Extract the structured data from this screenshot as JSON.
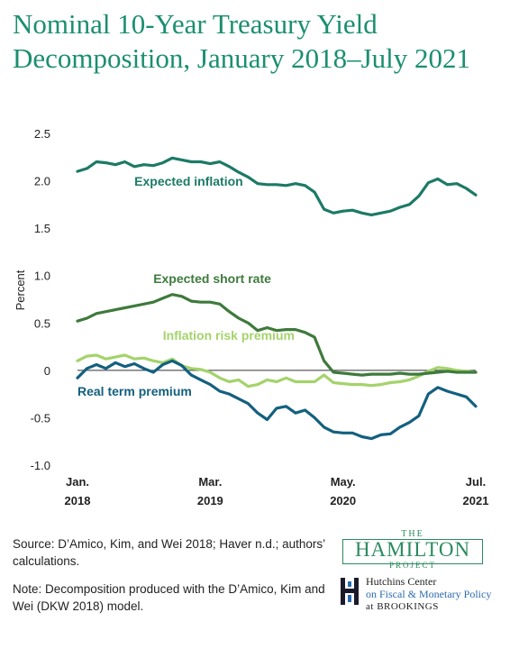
{
  "title": "Nominal 10-Year Treasury Yield Decomposition, January 2018–July 2021",
  "source": "Source: D’Amico, Kim, and Wei 2018; Haver n.d.; authors’ calculations.",
  "note": "Note: Decomposition produced with the D’Amico, Kim and Wei (DKW 2018) model.",
  "logo": {
    "the": "THE",
    "hamilton": "HAMILTON",
    "project": "PROJECT",
    "hutchins_line1": "Hutchins Center",
    "hutchins_line2": "on Fiscal & Monetary Policy",
    "hutchins_line3": "at BROOKINGS"
  },
  "colors": {
    "expected_inflation": "#1c7a66",
    "expected_short_rate": "#3e7a3c",
    "inflation_risk_premium": "#a4d36b",
    "real_term_premium": "#13607f",
    "title": "#1a8f6f"
  },
  "chart_data": {
    "type": "line",
    "ylabel": "Percent",
    "ylim": [
      -1.0,
      2.5
    ],
    "yticks": [
      "2.5",
      "2.0",
      "1.5",
      "1.0",
      "0.5",
      "0",
      "-0.5",
      "-1.0"
    ],
    "xlim": [
      "2018-01",
      "2021-07"
    ],
    "xticks": [
      {
        "x": "2018-01",
        "line1": "Jan.",
        "line2": "2018"
      },
      {
        "x": "2019-03",
        "line1": "Mar.",
        "line2": "2019"
      },
      {
        "x": "2020-05",
        "line1": "May.",
        "line2": "2020"
      },
      {
        "x": "2021-07",
        "line1": "Jul.",
        "line2": "2021"
      }
    ],
    "series": [
      {
        "name": "Expected inflation",
        "label_anchor": {
          "x": "2018-07",
          "y": 1.95
        },
        "points": [
          [
            "2018-01",
            2.1
          ],
          [
            "2018-02",
            2.13
          ],
          [
            "2018-03",
            2.2
          ],
          [
            "2018-04",
            2.19
          ],
          [
            "2018-05",
            2.17
          ],
          [
            "2018-06",
            2.2
          ],
          [
            "2018-07",
            2.15
          ],
          [
            "2018-08",
            2.17
          ],
          [
            "2018-09",
            2.16
          ],
          [
            "2018-10",
            2.19
          ],
          [
            "2018-11",
            2.24
          ],
          [
            "2018-12",
            2.22
          ],
          [
            "2019-01",
            2.2
          ],
          [
            "2019-02",
            2.2
          ],
          [
            "2019-03",
            2.18
          ],
          [
            "2019-04",
            2.2
          ],
          [
            "2019-05",
            2.15
          ],
          [
            "2019-06",
            2.09
          ],
          [
            "2019-07",
            2.04
          ],
          [
            "2019-08",
            1.97
          ],
          [
            "2019-09",
            1.96
          ],
          [
            "2019-10",
            1.96
          ],
          [
            "2019-11",
            1.95
          ],
          [
            "2019-12",
            1.97
          ],
          [
            "2020-01",
            1.95
          ],
          [
            "2020-02",
            1.88
          ],
          [
            "2020-03",
            1.7
          ],
          [
            "2020-04",
            1.66
          ],
          [
            "2020-05",
            1.68
          ],
          [
            "2020-06",
            1.69
          ],
          [
            "2020-07",
            1.66
          ],
          [
            "2020-08",
            1.64
          ],
          [
            "2020-09",
            1.66
          ],
          [
            "2020-10",
            1.68
          ],
          [
            "2020-11",
            1.72
          ],
          [
            "2020-12",
            1.75
          ],
          [
            "2021-01",
            1.84
          ],
          [
            "2021-02",
            1.98
          ],
          [
            "2021-03",
            2.02
          ],
          [
            "2021-04",
            1.96
          ],
          [
            "2021-05",
            1.97
          ],
          [
            "2021-06",
            1.92
          ],
          [
            "2021-07",
            1.85
          ]
        ]
      },
      {
        "name": "Expected short rate",
        "label_anchor": {
          "x": "2018-09",
          "y": 0.92
        },
        "points": [
          [
            "2018-01",
            0.52
          ],
          [
            "2018-02",
            0.55
          ],
          [
            "2018-03",
            0.6
          ],
          [
            "2018-04",
            0.62
          ],
          [
            "2018-05",
            0.64
          ],
          [
            "2018-06",
            0.66
          ],
          [
            "2018-07",
            0.68
          ],
          [
            "2018-08",
            0.7
          ],
          [
            "2018-09",
            0.72
          ],
          [
            "2018-10",
            0.76
          ],
          [
            "2018-11",
            0.8
          ],
          [
            "2018-12",
            0.78
          ],
          [
            "2019-01",
            0.73
          ],
          [
            "2019-02",
            0.72
          ],
          [
            "2019-03",
            0.72
          ],
          [
            "2019-04",
            0.7
          ],
          [
            "2019-05",
            0.62
          ],
          [
            "2019-06",
            0.55
          ],
          [
            "2019-07",
            0.5
          ],
          [
            "2019-08",
            0.42
          ],
          [
            "2019-09",
            0.45
          ],
          [
            "2019-10",
            0.42
          ],
          [
            "2019-11",
            0.43
          ],
          [
            "2019-12",
            0.43
          ],
          [
            "2020-01",
            0.4
          ],
          [
            "2020-02",
            0.35
          ],
          [
            "2020-03",
            0.1
          ],
          [
            "2020-04",
            -0.02
          ],
          [
            "2020-05",
            -0.03
          ],
          [
            "2020-06",
            -0.04
          ],
          [
            "2020-07",
            -0.05
          ],
          [
            "2020-08",
            -0.04
          ],
          [
            "2020-09",
            -0.04
          ],
          [
            "2020-10",
            -0.04
          ],
          [
            "2020-11",
            -0.03
          ],
          [
            "2020-12",
            -0.04
          ],
          [
            "2021-01",
            -0.04
          ],
          [
            "2021-02",
            -0.03
          ],
          [
            "2021-03",
            -0.02
          ],
          [
            "2021-04",
            -0.01
          ],
          [
            "2021-05",
            -0.02
          ],
          [
            "2021-06",
            -0.02
          ],
          [
            "2021-07",
            -0.02
          ]
        ]
      },
      {
        "name": "Inflation risk premium",
        "label_anchor": {
          "x": "2018-10",
          "y": 0.32
        },
        "points": [
          [
            "2018-01",
            0.1
          ],
          [
            "2018-02",
            0.15
          ],
          [
            "2018-03",
            0.16
          ],
          [
            "2018-04",
            0.12
          ],
          [
            "2018-05",
            0.14
          ],
          [
            "2018-06",
            0.16
          ],
          [
            "2018-07",
            0.12
          ],
          [
            "2018-08",
            0.13
          ],
          [
            "2018-09",
            0.1
          ],
          [
            "2018-10",
            0.08
          ],
          [
            "2018-11",
            0.12
          ],
          [
            "2018-12",
            0.05
          ],
          [
            "2019-01",
            0.02
          ],
          [
            "2019-02",
            0.01
          ],
          [
            "2019-03",
            -0.02
          ],
          [
            "2019-04",
            -0.08
          ],
          [
            "2019-05",
            -0.12
          ],
          [
            "2019-06",
            -0.1
          ],
          [
            "2019-07",
            -0.17
          ],
          [
            "2019-08",
            -0.15
          ],
          [
            "2019-09",
            -0.1
          ],
          [
            "2019-10",
            -0.12
          ],
          [
            "2019-11",
            -0.08
          ],
          [
            "2019-12",
            -0.12
          ],
          [
            "2020-01",
            -0.12
          ],
          [
            "2020-02",
            -0.12
          ],
          [
            "2020-03",
            -0.05
          ],
          [
            "2020-04",
            -0.13
          ],
          [
            "2020-05",
            -0.14
          ],
          [
            "2020-06",
            -0.15
          ],
          [
            "2020-07",
            -0.15
          ],
          [
            "2020-08",
            -0.16
          ],
          [
            "2020-09",
            -0.15
          ],
          [
            "2020-10",
            -0.13
          ],
          [
            "2020-11",
            -0.12
          ],
          [
            "2020-12",
            -0.1
          ],
          [
            "2021-01",
            -0.06
          ],
          [
            "2021-02",
            -0.01
          ],
          [
            "2021-03",
            0.03
          ],
          [
            "2021-04",
            0.02
          ],
          [
            "2021-05",
            0.0
          ],
          [
            "2021-06",
            -0.01
          ],
          [
            "2021-07",
            -0.02
          ]
        ]
      },
      {
        "name": "Real term premium",
        "label_anchor": {
          "x": "2018-01",
          "y": -0.27
        },
        "points": [
          [
            "2018-01",
            -0.08
          ],
          [
            "2018-02",
            0.02
          ],
          [
            "2018-03",
            0.06
          ],
          [
            "2018-04",
            0.02
          ],
          [
            "2018-05",
            0.08
          ],
          [
            "2018-06",
            0.04
          ],
          [
            "2018-07",
            0.07
          ],
          [
            "2018-08",
            0.02
          ],
          [
            "2018-09",
            -0.02
          ],
          [
            "2018-10",
            0.06
          ],
          [
            "2018-11",
            0.1
          ],
          [
            "2018-12",
            0.05
          ],
          [
            "2019-01",
            -0.05
          ],
          [
            "2019-02",
            -0.1
          ],
          [
            "2019-03",
            -0.15
          ],
          [
            "2019-04",
            -0.22
          ],
          [
            "2019-05",
            -0.25
          ],
          [
            "2019-06",
            -0.3
          ],
          [
            "2019-07",
            -0.35
          ],
          [
            "2019-08",
            -0.45
          ],
          [
            "2019-09",
            -0.52
          ],
          [
            "2019-10",
            -0.4
          ],
          [
            "2019-11",
            -0.38
          ],
          [
            "2019-12",
            -0.45
          ],
          [
            "2020-01",
            -0.42
          ],
          [
            "2020-02",
            -0.5
          ],
          [
            "2020-03",
            -0.6
          ],
          [
            "2020-04",
            -0.65
          ],
          [
            "2020-05",
            -0.66
          ],
          [
            "2020-06",
            -0.66
          ],
          [
            "2020-07",
            -0.7
          ],
          [
            "2020-08",
            -0.72
          ],
          [
            "2020-09",
            -0.68
          ],
          [
            "2020-10",
            -0.67
          ],
          [
            "2020-11",
            -0.6
          ],
          [
            "2020-12",
            -0.55
          ],
          [
            "2021-01",
            -0.48
          ],
          [
            "2021-02",
            -0.25
          ],
          [
            "2021-03",
            -0.18
          ],
          [
            "2021-04",
            -0.22
          ],
          [
            "2021-05",
            -0.25
          ],
          [
            "2021-06",
            -0.28
          ],
          [
            "2021-07",
            -0.38
          ]
        ]
      }
    ]
  }
}
